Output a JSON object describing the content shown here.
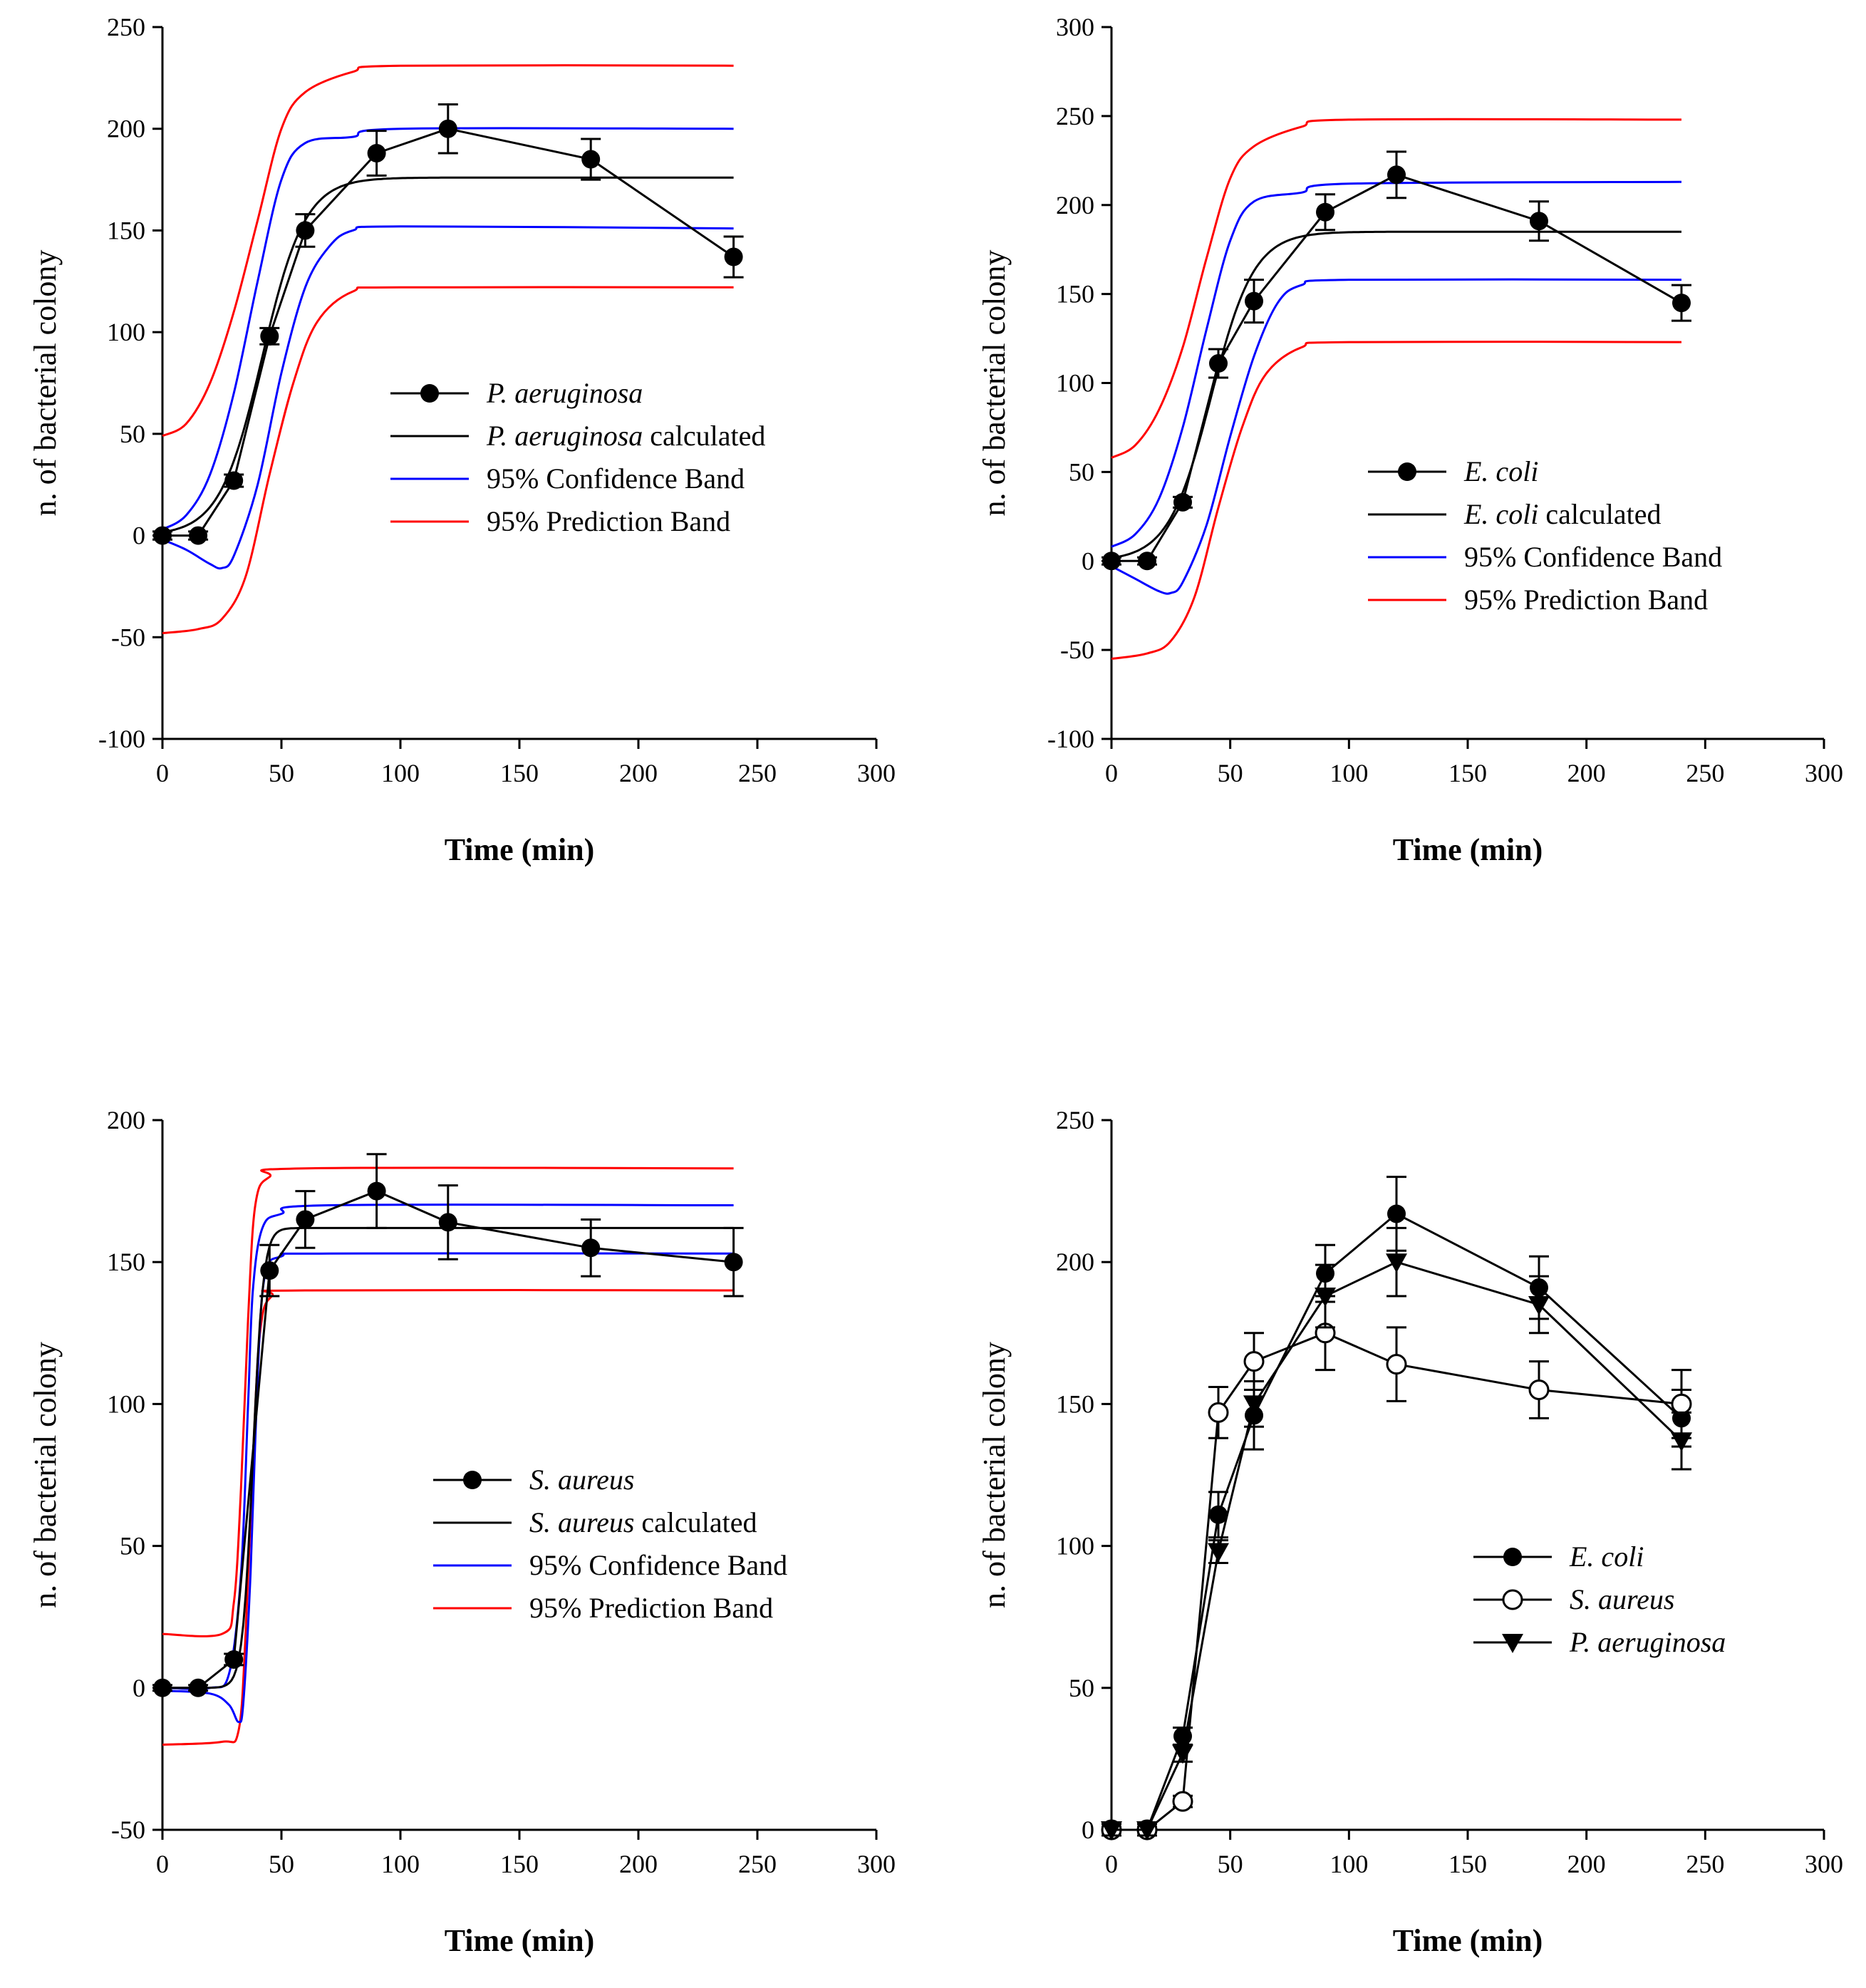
{
  "chart_data": [
    {
      "type": "line",
      "xlabel": "Time (min)",
      "ylabel": "n. of bacterial colony",
      "xlim": [
        0,
        300
      ],
      "ylim": [
        -100,
        250
      ],
      "xticks": [
        0,
        50,
        100,
        150,
        200,
        250,
        300
      ],
      "yticks": [
        -100,
        -50,
        0,
        50,
        100,
        150,
        200,
        250
      ],
      "legend": [
        {
          "italic": "P. aeruginosa",
          "rest": "",
          "kind": "marker-line",
          "color": "#000000"
        },
        {
          "italic": "P. aeruginosa",
          "rest": " calculated",
          "kind": "line",
          "color": "#000000"
        },
        {
          "italic": "",
          "rest": "95% Confidence Band",
          "kind": "line",
          "color": "#0000ff"
        },
        {
          "italic": "",
          "rest": "95% Prediction Band",
          "kind": "line",
          "color": "#ff0000"
        }
      ],
      "legend_placement": "center-right",
      "observed": {
        "x": [
          0,
          15,
          30,
          45,
          60,
          90,
          120,
          180,
          240
        ],
        "y": [
          0,
          0,
          27,
          98,
          150,
          188,
          200,
          185,
          137
        ],
        "err": [
          2,
          2,
          3,
          4,
          8,
          11,
          12,
          10,
          10
        ],
        "marker": "filled-circle"
      },
      "fit": {
        "type": "sigmoid",
        "base": 0,
        "top": 176,
        "mid": 42,
        "scale": 9
      },
      "confidence_band": {
        "upper": [
          [
            0,
            3
          ],
          [
            10,
            10
          ],
          [
            20,
            30
          ],
          [
            30,
            70
          ],
          [
            40,
            125
          ],
          [
            50,
            175
          ],
          [
            60,
            193
          ],
          [
            80,
            196
          ],
          [
            100,
            200
          ],
          [
            240,
            200
          ]
        ],
        "lower": [
          [
            0,
            -2
          ],
          [
            10,
            -7
          ],
          [
            20,
            -14
          ],
          [
            25,
            -16
          ],
          [
            30,
            -10
          ],
          [
            40,
            25
          ],
          [
            50,
            80
          ],
          [
            60,
            122
          ],
          [
            70,
            142
          ],
          [
            80,
            150
          ],
          [
            100,
            152
          ],
          [
            240,
            151
          ]
        ]
      },
      "prediction_band": {
        "upper": [
          [
            0,
            49
          ],
          [
            10,
            55
          ],
          [
            20,
            75
          ],
          [
            30,
            110
          ],
          [
            40,
            155
          ],
          [
            50,
            200
          ],
          [
            60,
            218
          ],
          [
            80,
            228
          ],
          [
            100,
            231
          ],
          [
            240,
            231
          ]
        ],
        "lower": [
          [
            0,
            -48
          ],
          [
            15,
            -46
          ],
          [
            25,
            -41
          ],
          [
            35,
            -20
          ],
          [
            45,
            30
          ],
          [
            55,
            75
          ],
          [
            65,
            105
          ],
          [
            80,
            120
          ],
          [
            100,
            122
          ],
          [
            240,
            122
          ]
        ]
      }
    },
    {
      "type": "line",
      "xlabel": "Time (min)",
      "ylabel": "n. of bacterial colony",
      "xlim": [
        0,
        300
      ],
      "ylim": [
        -100,
        300
      ],
      "xticks": [
        0,
        50,
        100,
        150,
        200,
        250,
        300
      ],
      "yticks": [
        -100,
        -50,
        0,
        50,
        100,
        150,
        200,
        250,
        300
      ],
      "legend": [
        {
          "italic": "E. coli",
          "rest": "",
          "kind": "marker-line",
          "color": "#000000"
        },
        {
          "italic": "E. coli",
          "rest": " calculated",
          "kind": "line",
          "color": "#000000"
        },
        {
          "italic": "",
          "rest": "95% Confidence Band",
          "kind": "line",
          "color": "#0000ff"
        },
        {
          "italic": "",
          "rest": "95% Prediction Band",
          "kind": "line",
          "color": "#ff0000"
        }
      ],
      "legend_placement": "bottom-right",
      "observed": {
        "x": [
          0,
          15,
          30,
          45,
          60,
          90,
          120,
          180,
          240
        ],
        "y": [
          0,
          0,
          33,
          111,
          146,
          196,
          217,
          191,
          145
        ],
        "err": [
          2,
          2,
          3,
          8,
          12,
          10,
          13,
          11,
          10
        ],
        "marker": "filled-circle"
      },
      "fit": {
        "type": "sigmoid",
        "base": 0,
        "top": 185,
        "mid": 42,
        "scale": 9
      },
      "confidence_band": {
        "upper": [
          [
            0,
            8
          ],
          [
            10,
            15
          ],
          [
            20,
            35
          ],
          [
            30,
            75
          ],
          [
            40,
            130
          ],
          [
            50,
            180
          ],
          [
            60,
            202
          ],
          [
            80,
            207
          ],
          [
            100,
            212
          ],
          [
            240,
            213
          ]
        ],
        "lower": [
          [
            0,
            -3
          ],
          [
            10,
            -10
          ],
          [
            20,
            -17
          ],
          [
            25,
            -18
          ],
          [
            30,
            -12
          ],
          [
            40,
            20
          ],
          [
            50,
            70
          ],
          [
            60,
            115
          ],
          [
            70,
            145
          ],
          [
            80,
            155
          ],
          [
            100,
            158
          ],
          [
            240,
            158
          ]
        ]
      },
      "prediction_band": {
        "upper": [
          [
            0,
            58
          ],
          [
            10,
            65
          ],
          [
            20,
            85
          ],
          [
            30,
            120
          ],
          [
            40,
            170
          ],
          [
            50,
            215
          ],
          [
            60,
            233
          ],
          [
            80,
            244
          ],
          [
            100,
            248
          ],
          [
            240,
            248
          ]
        ],
        "lower": [
          [
            0,
            -55
          ],
          [
            15,
            -52
          ],
          [
            25,
            -45
          ],
          [
            35,
            -20
          ],
          [
            45,
            30
          ],
          [
            55,
            75
          ],
          [
            65,
            105
          ],
          [
            80,
            120
          ],
          [
            100,
            123
          ],
          [
            240,
            123
          ]
        ]
      }
    },
    {
      "type": "line",
      "xlabel": "Time (min)",
      "ylabel": "n. of bacterial colony",
      "xlim": [
        0,
        300
      ],
      "ylim": [
        -50,
        200
      ],
      "xticks": [
        0,
        50,
        100,
        150,
        200,
        250,
        300
      ],
      "yticks": [
        -50,
        0,
        50,
        100,
        150,
        200
      ],
      "legend": [
        {
          "italic": "S. aureus",
          "rest": "",
          "kind": "marker-line",
          "color": "#000000"
        },
        {
          "italic": "S. aureus",
          "rest": " calculated",
          "kind": "line",
          "color": "#000000"
        },
        {
          "italic": "",
          "rest": "95% Confidence Band",
          "kind": "line",
          "color": "#0000ff"
        },
        {
          "italic": "",
          "rest": "95% Prediction Band",
          "kind": "line",
          "color": "#ff0000"
        }
      ],
      "legend_placement": "center-right",
      "observed": {
        "x": [
          0,
          15,
          30,
          45,
          60,
          90,
          120,
          180,
          240
        ],
        "y": [
          0,
          0,
          10,
          147,
          165,
          175,
          164,
          155,
          150
        ],
        "err": [
          1,
          1,
          2,
          9,
          10,
          13,
          13,
          10,
          12
        ],
        "marker": "filled-circle"
      },
      "fit": {
        "type": "sigmoid",
        "base": 0,
        "top": 162,
        "mid": 38,
        "scale": 2.2
      },
      "confidence_band": {
        "upper": [
          [
            0,
            0
          ],
          [
            20,
            0
          ],
          [
            28,
            5
          ],
          [
            33,
            40
          ],
          [
            36,
            100
          ],
          [
            38,
            140
          ],
          [
            42,
            162
          ],
          [
            50,
            167
          ],
          [
            70,
            170
          ],
          [
            240,
            170
          ]
        ],
        "lower": [
          [
            0,
            -1
          ],
          [
            20,
            -2
          ],
          [
            28,
            -6
          ],
          [
            32,
            -12
          ],
          [
            34,
            -5
          ],
          [
            37,
            40
          ],
          [
            40,
            110
          ],
          [
            43,
            145
          ],
          [
            50,
            152
          ],
          [
            70,
            153
          ],
          [
            240,
            153
          ]
        ]
      },
      "prediction_band": {
        "upper": [
          [
            0,
            19
          ],
          [
            25,
            19
          ],
          [
            30,
            30
          ],
          [
            33,
            70
          ],
          [
            36,
            130
          ],
          [
            39,
            170
          ],
          [
            45,
            180
          ],
          [
            60,
            183
          ],
          [
            240,
            183
          ]
        ],
        "lower": [
          [
            0,
            -20
          ],
          [
            25,
            -19
          ],
          [
            32,
            -15
          ],
          [
            35,
            20
          ],
          [
            38,
            80
          ],
          [
            41,
            125
          ],
          [
            46,
            138
          ],
          [
            60,
            140
          ],
          [
            240,
            140
          ]
        ]
      }
    },
    {
      "type": "line",
      "xlabel": "Time (min)",
      "ylabel": "n. of bacterial colony",
      "xlim": [
        0,
        300
      ],
      "ylim": [
        0,
        250
      ],
      "xticks": [
        0,
        50,
        100,
        150,
        200,
        250,
        300
      ],
      "yticks": [
        0,
        50,
        100,
        150,
        200,
        250
      ],
      "legend": [
        {
          "italic": "E. coli",
          "rest": "",
          "kind": "marker-line",
          "marker": "filled-circle",
          "color": "#000000"
        },
        {
          "italic": "S. aureus",
          "rest": "",
          "kind": "marker-line",
          "marker": "open-circle",
          "color": "#000000"
        },
        {
          "italic": "P. aeruginosa",
          "rest": "",
          "kind": "marker-line",
          "marker": "filled-triangle-down",
          "color": "#000000"
        }
      ],
      "legend_placement": "center-right",
      "series": [
        {
          "name": "E. coli",
          "marker": "filled-circle",
          "x": [
            0,
            15,
            30,
            45,
            60,
            90,
            120,
            180,
            240
          ],
          "y": [
            0,
            0,
            33,
            111,
            146,
            196,
            217,
            191,
            145
          ],
          "err": [
            2,
            2,
            3,
            8,
            12,
            10,
            13,
            11,
            10
          ]
        },
        {
          "name": "S. aureus",
          "marker": "open-circle",
          "x": [
            0,
            15,
            30,
            45,
            60,
            90,
            120,
            180,
            240
          ],
          "y": [
            0,
            0,
            10,
            147,
            165,
            175,
            164,
            155,
            150
          ],
          "err": [
            1,
            1,
            2,
            9,
            10,
            13,
            13,
            10,
            12
          ]
        },
        {
          "name": "P. aeruginosa",
          "marker": "filled-triangle-down",
          "x": [
            0,
            15,
            30,
            45,
            60,
            90,
            120,
            180,
            240
          ],
          "y": [
            0,
            0,
            27,
            98,
            150,
            188,
            200,
            185,
            137
          ],
          "err": [
            2,
            2,
            3,
            4,
            8,
            11,
            12,
            10,
            10
          ]
        }
      ]
    }
  ]
}
